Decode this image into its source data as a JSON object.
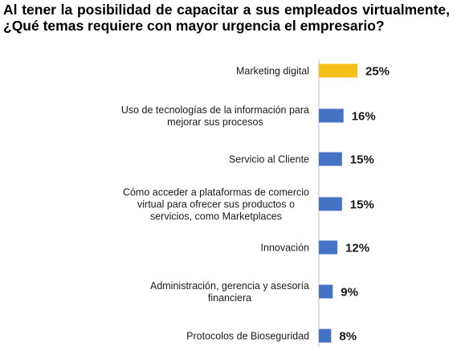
{
  "chart_data": {
    "type": "bar",
    "orientation": "horizontal",
    "title": "Al tener la posibilidad de capacitar a sus empleados virtualmente, ¿Qué temas requiere con mayor urgencia el empresario?",
    "categories": [
      "Marketing digital",
      "Uso de tecnologías de la información para mejorar sus procesos",
      "Servicio al Cliente",
      "Cómo acceder a plataformas de comercio virtual para ofrecer sus productos o servicios, como Marketplaces",
      "Innovación",
      "Administración, gerencia y asesoría financiera",
      "Protocolos de Bioseguridad"
    ],
    "category_lines": [
      [
        "Marketing digital"
      ],
      [
        "Uso de tecnologías de la información para",
        "mejorar sus procesos"
      ],
      [
        "Servicio al Cliente"
      ],
      [
        "Cómo acceder a plataformas de comercio",
        "virtual para ofrecer sus productos o",
        "servicios, como Marketplaces"
      ],
      [
        "Innovación"
      ],
      [
        "Administración, gerencia y asesoría",
        "financiera"
      ],
      [
        "Protocolos de Bioseguridad"
      ]
    ],
    "values": [
      25,
      16,
      15,
      15,
      12,
      9,
      8
    ],
    "value_labels": [
      "25%",
      "16%",
      "15%",
      "15%",
      "12%",
      "9%",
      "8%"
    ],
    "bar_colors": [
      "#F5C118",
      "#4472C4",
      "#4472C4",
      "#4472C4",
      "#4472C4",
      "#4472C4",
      "#4472C4"
    ],
    "axis_line_color": "#BFBFBF"
  }
}
